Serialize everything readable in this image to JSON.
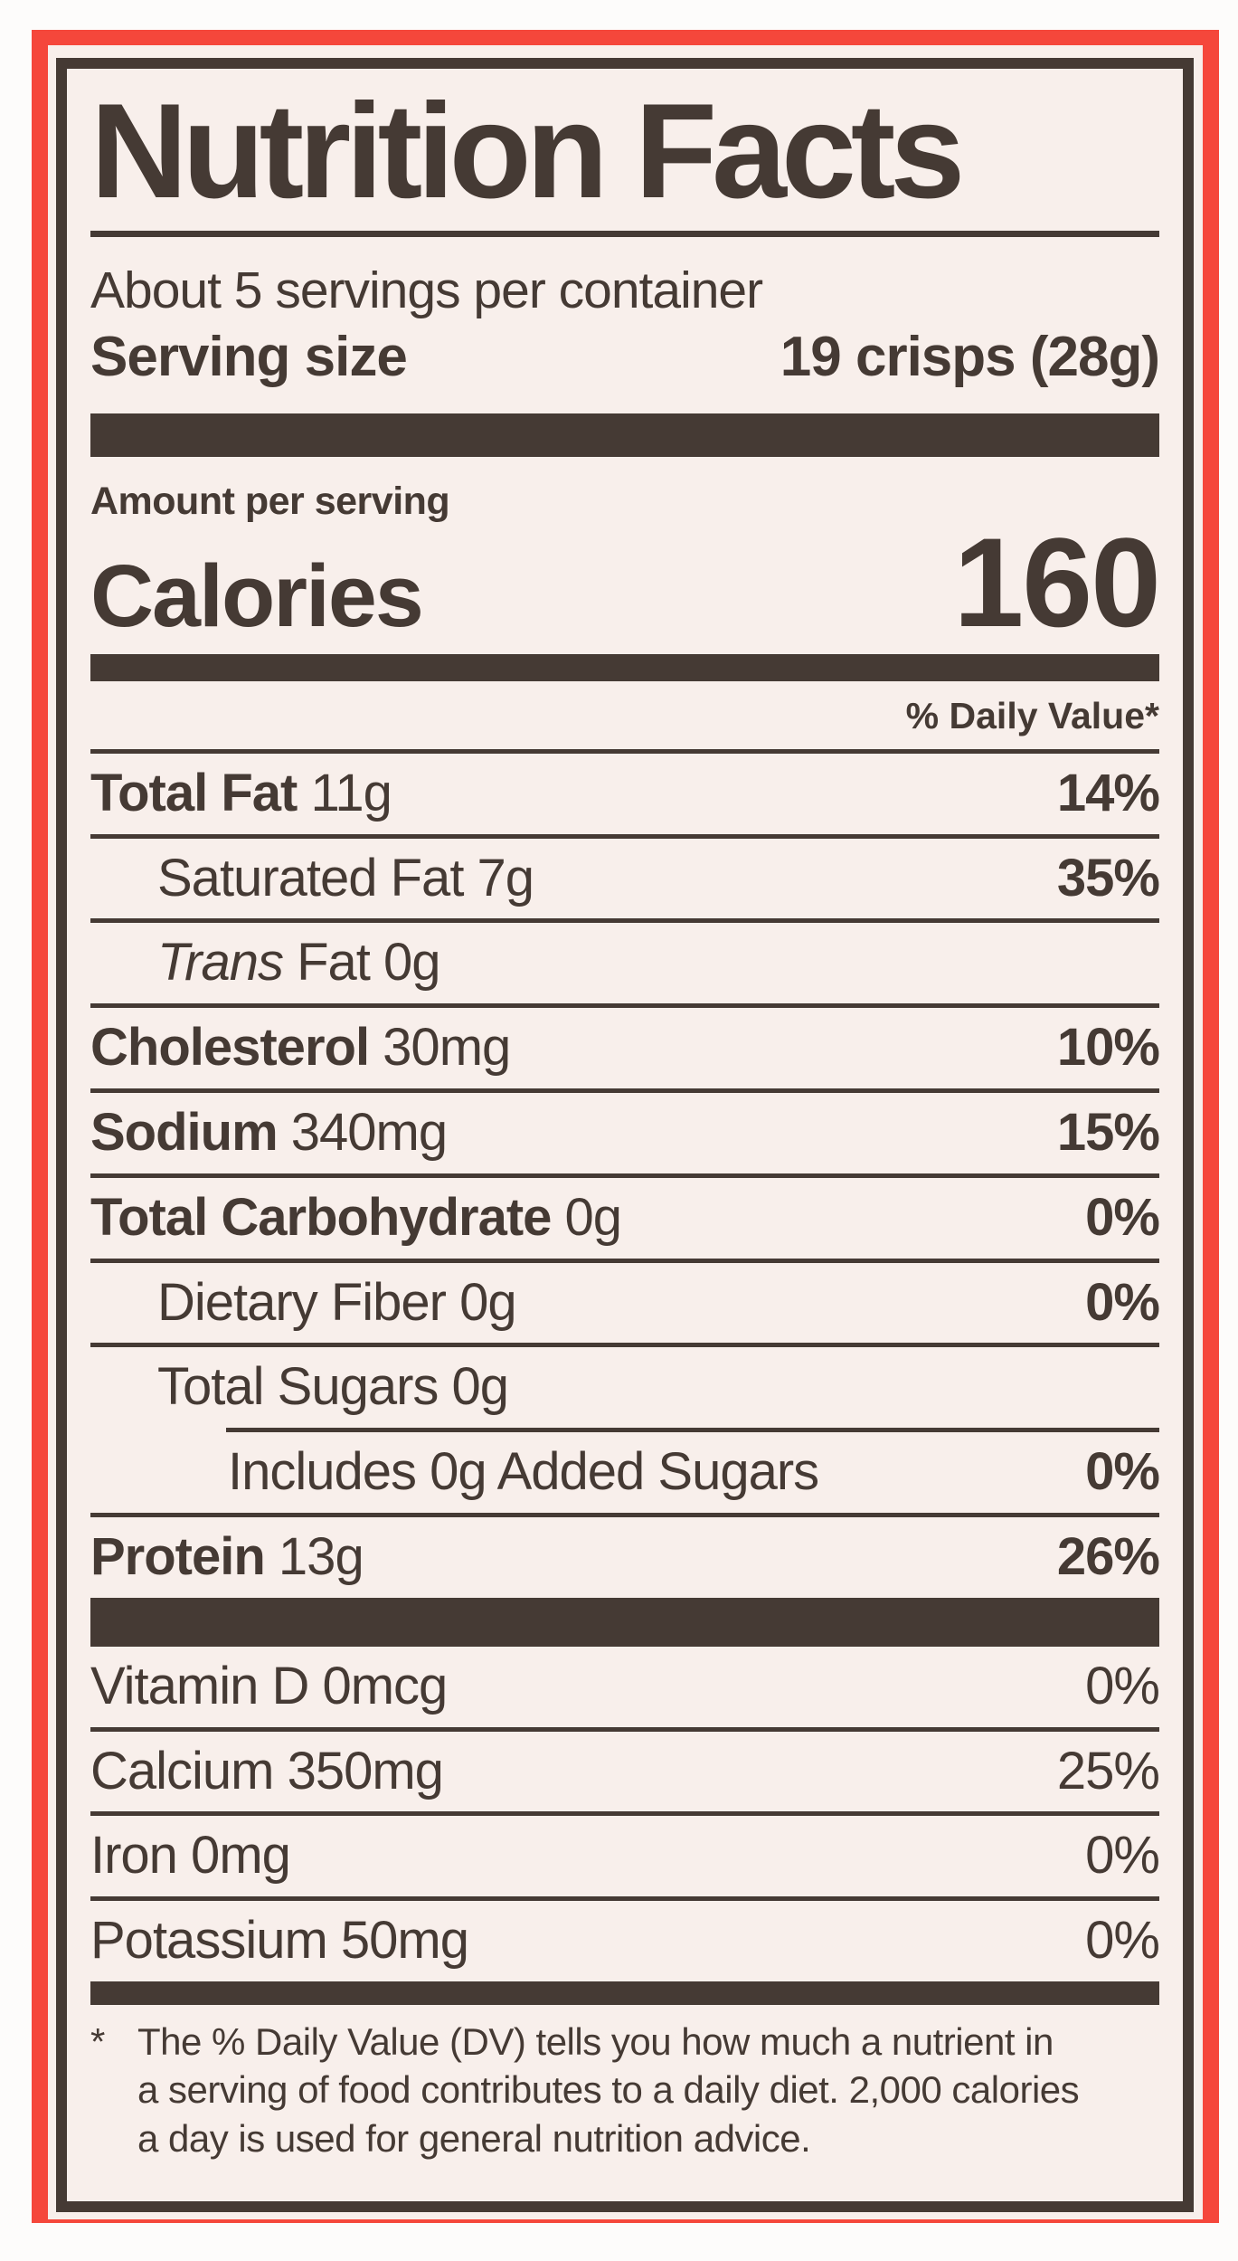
{
  "colors": {
    "accent_red": "#f5473b",
    "ink": "#453a34",
    "label_background": "#f8efeb"
  },
  "label": {
    "title": "Nutrition Facts",
    "servings_per_container": "About 5 servings per container",
    "serving_size_label": "Serving size",
    "serving_size_value": "19 crisps (28g)",
    "amount_per_serving": "Amount per serving",
    "calories_label": "Calories",
    "calories_value": "160",
    "daily_value_header": "% Daily Value*",
    "rows": [
      {
        "bold": "Total Fat",
        "italic": "",
        "rest": " 11g",
        "pct": "14%"
      },
      {
        "bold": "",
        "italic": "",
        "rest": "Saturated Fat 7g",
        "pct": "35%"
      },
      {
        "bold": "",
        "italic": "Trans",
        "rest": " Fat 0g",
        "pct": ""
      },
      {
        "bold": "Cholesterol",
        "italic": "",
        "rest": " 30mg",
        "pct": "10%"
      },
      {
        "bold": "Sodium",
        "italic": "",
        "rest": " 340mg",
        "pct": "15%"
      },
      {
        "bold": "Total Carbohydrate",
        "italic": "",
        "rest": " 0g",
        "pct": "0%"
      },
      {
        "bold": "",
        "italic": "",
        "rest": "Dietary Fiber 0g",
        "pct": "0%"
      },
      {
        "bold": "",
        "italic": "",
        "rest": "Total Sugars 0g",
        "pct": ""
      },
      {
        "bold": "",
        "italic": "",
        "rest": "Includes 0g Added Sugars",
        "pct": "0%"
      },
      {
        "bold": "Protein",
        "italic": "",
        "rest": " 13g",
        "pct": "26%"
      }
    ],
    "micronutrients": [
      {
        "name": "Vitamin D 0mcg",
        "pct": "0%"
      },
      {
        "name": "Calcium 350mg",
        "pct": "25%"
      },
      {
        "name": "Iron 0mg",
        "pct": "0%"
      },
      {
        "name": "Potassium 50mg",
        "pct": "0%"
      }
    ],
    "footnote": {
      "star": "*",
      "line1": "The % Daily Value (DV) tells you how much a nutrient in",
      "line2": "a serving of food contributes to a daily diet. 2,000 calories",
      "line3": "a day is used for general nutrition advice."
    }
  }
}
